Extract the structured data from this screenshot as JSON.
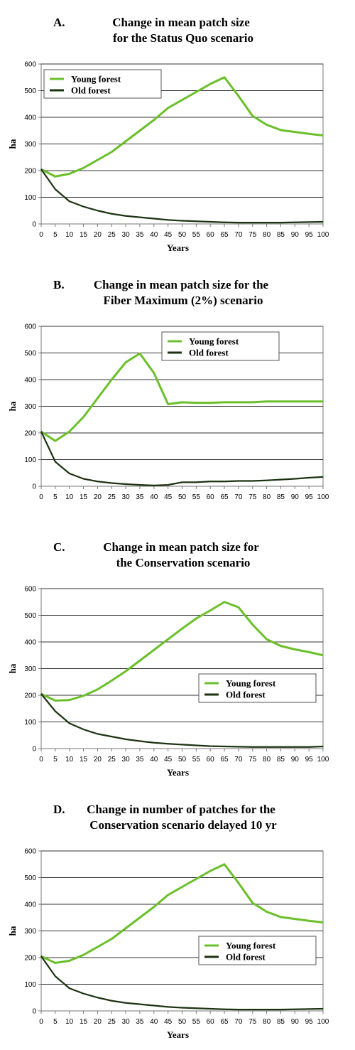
{
  "colors": {
    "young": "#6abf2a",
    "old": "#1c3311",
    "grid": "#333333",
    "axis": "#777777"
  },
  "chart_data": [
    {
      "type": "line",
      "letter": "A.",
      "title_lines": [
        "Change in mean patch size",
        "for the Status Quo scenario"
      ],
      "xlabel": "Years",
      "ylabel": "ha",
      "x": [
        0,
        5,
        10,
        15,
        20,
        25,
        30,
        35,
        40,
        45,
        50,
        55,
        60,
        65,
        70,
        75,
        80,
        85,
        90,
        95,
        100
      ],
      "ylim": [
        0,
        600
      ],
      "yticks": [
        0,
        100,
        200,
        300,
        400,
        500,
        600
      ],
      "xticks": [
        0,
        5,
        10,
        15,
        20,
        25,
        30,
        35,
        40,
        45,
        50,
        55,
        60,
        65,
        70,
        75,
        80,
        85,
        90,
        95,
        100
      ],
      "grid": "horizontal",
      "legend_position": "top-left",
      "series": [
        {
          "name": "Young forest",
          "values": [
            205,
            178,
            188,
            210,
            240,
            270,
            310,
            350,
            390,
            435,
            465,
            495,
            525,
            550,
            480,
            405,
            372,
            352,
            345,
            338,
            332
          ]
        },
        {
          "name": "Old forest",
          "values": [
            205,
            130,
            85,
            65,
            50,
            38,
            30,
            25,
            20,
            15,
            12,
            10,
            8,
            6,
            5,
            5,
            5,
            5,
            6,
            7,
            8
          ]
        }
      ]
    },
    {
      "type": "line",
      "letter": "B.",
      "title_lines": [
        "Change in mean patch size for the",
        "Fiber Maximum (2%) scenario"
      ],
      "xlabel": "",
      "ylabel": "ha",
      "x": [
        0,
        5,
        10,
        15,
        20,
        25,
        30,
        35,
        40,
        45,
        50,
        55,
        60,
        65,
        70,
        75,
        80,
        85,
        90,
        95,
        100
      ],
      "ylim": [
        0,
        600
      ],
      "yticks": [
        0,
        100,
        200,
        300,
        400,
        500,
        600
      ],
      "xticks": [
        0,
        5,
        10,
        15,
        20,
        25,
        30,
        35,
        40,
        45,
        50,
        55,
        60,
        65,
        70,
        75,
        80,
        85,
        90,
        95,
        100
      ],
      "grid": "horizontal",
      "legend_position": "top-right",
      "series": [
        {
          "name": "Young forest",
          "values": [
            205,
            170,
            205,
            260,
            330,
            400,
            465,
            498,
            425,
            308,
            315,
            313,
            313,
            315,
            315,
            315,
            318,
            318,
            318,
            318,
            318
          ]
        },
        {
          "name": "Old forest",
          "values": [
            205,
            92,
            48,
            28,
            18,
            12,
            8,
            5,
            3,
            5,
            15,
            15,
            18,
            18,
            20,
            20,
            22,
            25,
            28,
            32,
            35
          ]
        }
      ]
    },
    {
      "type": "line",
      "letter": "C.",
      "title_lines": [
        "Change in mean patch size for",
        "the Conservation scenario"
      ],
      "xlabel": "Years",
      "ylabel": "ha",
      "x": [
        0,
        5,
        10,
        15,
        20,
        25,
        30,
        35,
        40,
        45,
        50,
        55,
        60,
        65,
        70,
        75,
        80,
        85,
        90,
        95,
        100
      ],
      "ylim": [
        0,
        600
      ],
      "yticks": [
        0,
        100,
        200,
        300,
        400,
        500,
        600
      ],
      "xticks": [
        0,
        5,
        10,
        15,
        20,
        25,
        30,
        35,
        40,
        45,
        50,
        55,
        60,
        65,
        70,
        75,
        80,
        85,
        90,
        95,
        100
      ],
      "grid": "horizontal",
      "legend_position": "bottom-right",
      "series": [
        {
          "name": "Young forest",
          "values": [
            205,
            180,
            182,
            198,
            222,
            255,
            290,
            330,
            370,
            410,
            450,
            488,
            518,
            550,
            530,
            465,
            410,
            385,
            372,
            362,
            350
          ]
        },
        {
          "name": "Old forest",
          "values": [
            205,
            140,
            95,
            72,
            55,
            45,
            35,
            28,
            22,
            18,
            15,
            12,
            9,
            8,
            7,
            6,
            6,
            6,
            6,
            6,
            8
          ]
        }
      ]
    },
    {
      "type": "line",
      "letter": "D.",
      "title_lines": [
        "Change in number of patches for the",
        "Conservation scenario delayed 10 yr"
      ],
      "xlabel": "Years",
      "ylabel": "ha",
      "x": [
        0,
        5,
        10,
        15,
        20,
        25,
        30,
        35,
        40,
        45,
        50,
        55,
        60,
        65,
        70,
        75,
        80,
        85,
        90,
        95,
        100
      ],
      "ylim": [
        0,
        600
      ],
      "yticks": [
        0,
        100,
        200,
        300,
        400,
        500,
        600
      ],
      "xticks": [
        0,
        5,
        10,
        15,
        20,
        25,
        30,
        35,
        40,
        45,
        50,
        55,
        60,
        65,
        70,
        75,
        80,
        85,
        90,
        95,
        100
      ],
      "grid": "horizontal",
      "legend_position": "bottom-right",
      "series": [
        {
          "name": "Young forest",
          "values": [
            205,
            180,
            188,
            210,
            240,
            270,
            310,
            350,
            390,
            435,
            465,
            495,
            525,
            550,
            480,
            405,
            372,
            352,
            345,
            338,
            332
          ]
        },
        {
          "name": "Old forest",
          "values": [
            205,
            130,
            85,
            65,
            50,
            38,
            30,
            25,
            20,
            15,
            12,
            10,
            8,
            6,
            5,
            5,
            5,
            5,
            6,
            7,
            8
          ]
        }
      ]
    }
  ]
}
